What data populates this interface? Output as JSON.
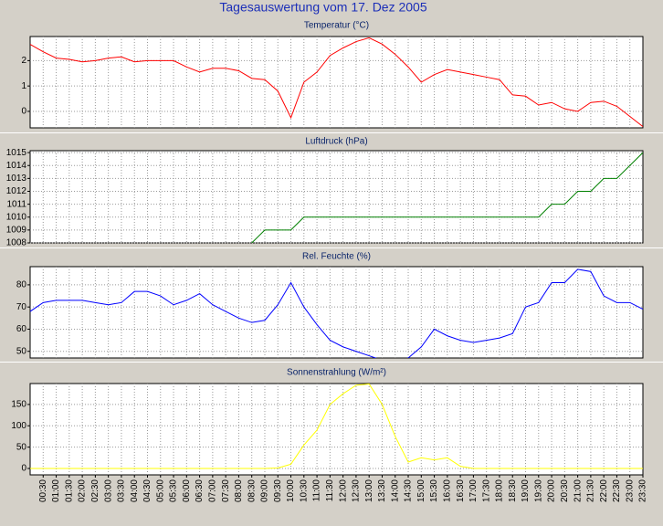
{
  "title": "Tagesauswertung vom 17. Dez 2005",
  "chart_data": [
    {
      "type": "line",
      "title": "Temperatur (°C)",
      "series": [
        {
          "color": "#ff0000",
          "values": [
            2.64,
            2.35,
            2.1,
            2.05,
            1.95,
            2.0,
            2.1,
            2.15,
            1.95,
            2.0,
            2.0,
            2.0,
            1.75,
            1.55,
            1.7,
            1.7,
            1.6,
            1.3,
            1.25,
            0.8,
            -0.25,
            1.15,
            1.55,
            2.2,
            2.5,
            2.75,
            2.9,
            2.65,
            2.25,
            1.75,
            1.15,
            1.45,
            1.65,
            1.55,
            1.45,
            1.35,
            1.25,
            0.65,
            0.6,
            0.25,
            0.35,
            0.1,
            0.0,
            0.35,
            0.4,
            0.2,
            -0.2,
            -0.6
          ]
        }
      ],
      "ylim": [
        -0.65,
        2.95
      ],
      "yticks": [
        0,
        1,
        2
      ],
      "grid": true
    },
    {
      "type": "line",
      "title": "Luftdruck (hPa)",
      "series": [
        {
          "color": "#008000",
          "values": [
            null,
            null,
            null,
            null,
            null,
            null,
            null,
            null,
            null,
            null,
            null,
            null,
            null,
            null,
            null,
            null,
            null,
            1008,
            1009,
            1009,
            1009,
            1010,
            1010,
            1010,
            1010,
            1010,
            1010,
            1010,
            1010,
            1010,
            1010,
            1010,
            1010,
            1010,
            1010,
            1010,
            1010,
            1010,
            1010,
            1010,
            1011,
            1011,
            1012,
            1012,
            1013,
            1013,
            1014,
            1015
          ]
        }
      ],
      "ylim": [
        1008,
        1015.15
      ],
      "yticks": [
        1008,
        1009,
        1010,
        1011,
        1012,
        1013,
        1014,
        1015
      ],
      "grid": true
    },
    {
      "type": "line",
      "title": "Rel. Feuchte (%)",
      "series": [
        {
          "color": "#0000ff",
          "values": [
            68,
            72,
            73,
            73,
            73,
            72,
            71,
            72,
            77,
            77,
            75,
            71,
            73,
            76,
            71,
            68,
            65,
            63,
            64,
            71,
            81,
            70,
            62,
            55,
            52,
            50,
            48,
            46,
            45,
            47,
            52,
            60,
            57,
            55,
            54,
            55,
            56,
            58,
            70,
            72,
            81,
            81,
            87,
            86,
            75,
            72,
            72,
            69
          ]
        }
      ],
      "ylim": [
        47,
        88.2
      ],
      "yticks": [
        50,
        60,
        70,
        80
      ],
      "grid": true
    },
    {
      "type": "line",
      "title": "Sonnenstrahlung (W/m²)",
      "categories": [
        null,
        "00:30",
        "01:00",
        "01:30",
        "02:00",
        "02:30",
        "03:00",
        "03:30",
        "04:00",
        "04:30",
        "05:00",
        "05:30",
        "06:00",
        "06:30",
        "07:00",
        "07:30",
        "08:00",
        "08:30",
        "09:00",
        "09:30",
        "10:00",
        "10:30",
        "11:00",
        "11:30",
        "12:00",
        "12:30",
        "13:00",
        "13:30",
        "14:00",
        "14:30",
        "15:00",
        "15:30",
        "16:00",
        "16:30",
        "17:00",
        "17:30",
        "18:00",
        "18:30",
        "19:00",
        "19:30",
        "20:00",
        "20:30",
        "21:00",
        "21:30",
        "22:00",
        "22:30",
        "23:00",
        "23:30"
      ],
      "series": [
        {
          "color": "#ffff00",
          "values": [
            0,
            0,
            0,
            0,
            0,
            0,
            0,
            0,
            0,
            0,
            0,
            0,
            0,
            0,
            0,
            0,
            0,
            0,
            0,
            1,
            10,
            55,
            90,
            150,
            175,
            195,
            198,
            150,
            75,
            15,
            25,
            20,
            25,
            5,
            0,
            0,
            0,
            0,
            0,
            0,
            0,
            0,
            0,
            0,
            0,
            0,
            0,
            0
          ]
        }
      ],
      "ylim": [
        -15,
        199
      ],
      "yticks": [
        0,
        50,
        100,
        150
      ],
      "grid": true
    }
  ]
}
